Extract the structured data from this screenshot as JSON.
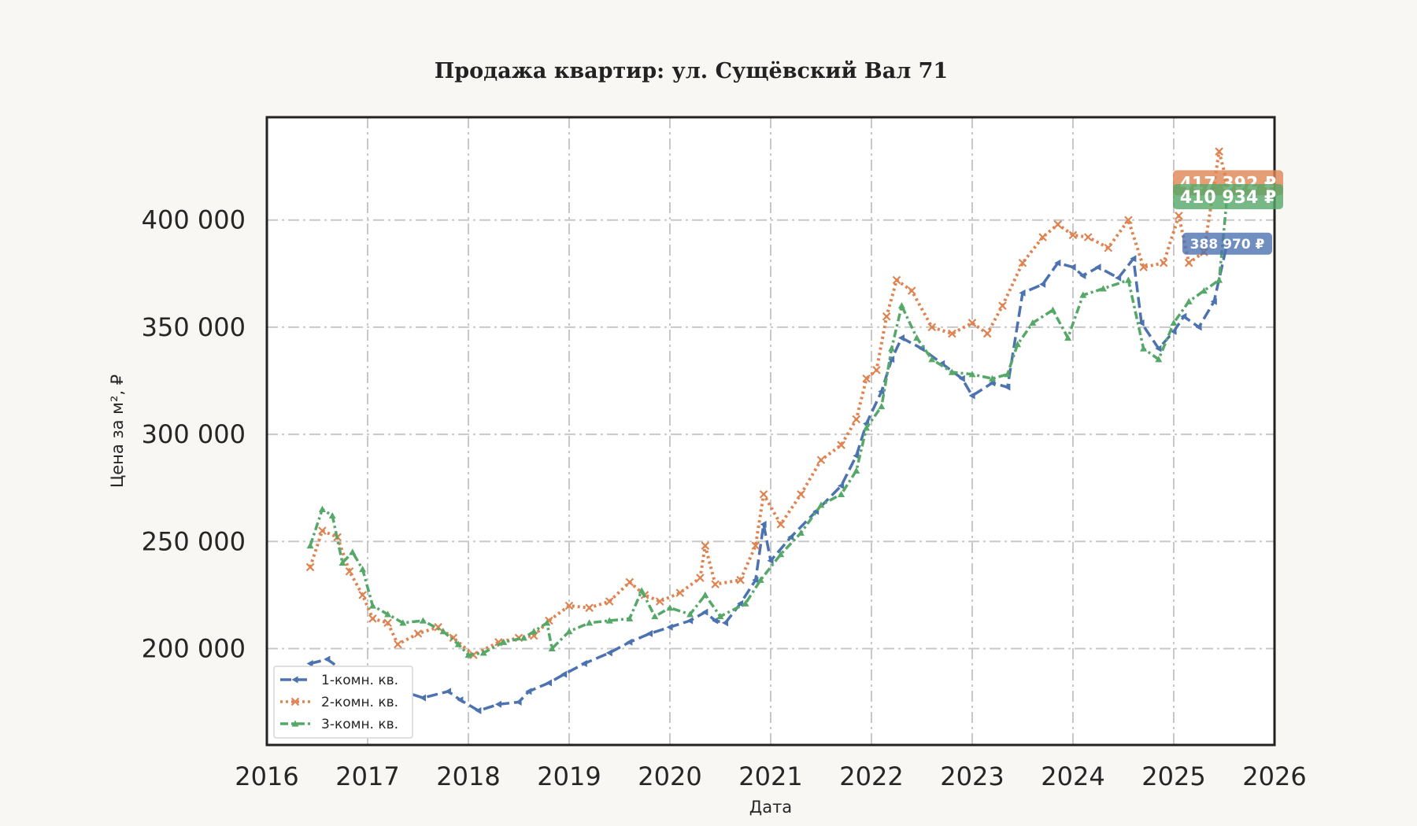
{
  "chart_data": {
    "type": "line",
    "title": "Продажа квартир: ул. Сущёвский Вал 71",
    "xlabel": "Дата",
    "ylabel": "Цена за м², ₽",
    "xlim": [
      2016,
      2026
    ],
    "ylim": [
      155000,
      448000
    ],
    "x_ticks": [
      "2016",
      "2017",
      "2018",
      "2019",
      "2020",
      "2021",
      "2022",
      "2023",
      "2024",
      "2025",
      "2026"
    ],
    "y_ticks": [
      "200 000",
      "250 000",
      "300 000",
      "350 000",
      "400 000"
    ],
    "y_tick_values": [
      200000,
      250000,
      300000,
      350000,
      400000
    ],
    "grid": true,
    "legend_position": "lower-left",
    "series": [
      {
        "name": "1-комн. кв.",
        "color": "#4c72b0",
        "marker": "triangle-left",
        "end_label": "388 970 ₽",
        "points": [
          [
            2016.43,
            193000
          ],
          [
            2016.6,
            195000
          ],
          [
            2016.75,
            190000
          ],
          [
            2016.9,
            186000
          ],
          [
            2017.15,
            183000
          ],
          [
            2017.35,
            180000
          ],
          [
            2017.55,
            177000
          ],
          [
            2017.8,
            180000
          ],
          [
            2017.92,
            176000
          ],
          [
            2018.1,
            171000
          ],
          [
            2018.3,
            174000
          ],
          [
            2018.5,
            175000
          ],
          [
            2018.6,
            180000
          ],
          [
            2018.8,
            184000
          ],
          [
            2018.95,
            188000
          ],
          [
            2019.15,
            193000
          ],
          [
            2019.4,
            198000
          ],
          [
            2019.6,
            203000
          ],
          [
            2019.8,
            207000
          ],
          [
            2020.0,
            210000
          ],
          [
            2020.2,
            213000
          ],
          [
            2020.35,
            217000
          ],
          [
            2020.45,
            213000
          ],
          [
            2020.55,
            212000
          ],
          [
            2020.7,
            221000
          ],
          [
            2020.85,
            232000
          ],
          [
            2020.93,
            258000
          ],
          [
            2021.0,
            241000
          ],
          [
            2021.2,
            252000
          ],
          [
            2021.45,
            264000
          ],
          [
            2021.7,
            276000
          ],
          [
            2021.85,
            290000
          ],
          [
            2021.95,
            305000
          ],
          [
            2022.1,
            320000
          ],
          [
            2022.2,
            335000
          ],
          [
            2022.3,
            345000
          ],
          [
            2022.5,
            340000
          ],
          [
            2022.7,
            333000
          ],
          [
            2022.9,
            326000
          ],
          [
            2023.0,
            318000
          ],
          [
            2023.2,
            324000
          ],
          [
            2023.35,
            322000
          ],
          [
            2023.5,
            366000
          ],
          [
            2023.7,
            370000
          ],
          [
            2023.85,
            380000
          ],
          [
            2024.0,
            378000
          ],
          [
            2024.1,
            374000
          ],
          [
            2024.25,
            378000
          ],
          [
            2024.45,
            373000
          ],
          [
            2024.6,
            382000
          ],
          [
            2024.68,
            352000
          ],
          [
            2024.85,
            340000
          ],
          [
            2025.0,
            348000
          ],
          [
            2025.1,
            355000
          ],
          [
            2025.25,
            350000
          ],
          [
            2025.4,
            362000
          ],
          [
            2025.53,
            388970
          ]
        ]
      },
      {
        "name": "2-комн. кв.",
        "color": "#dd8452",
        "marker": "x",
        "end_label": "417 392 ₽",
        "points": [
          [
            2016.43,
            238000
          ],
          [
            2016.55,
            255000
          ],
          [
            2016.7,
            252000
          ],
          [
            2016.82,
            236000
          ],
          [
            2016.95,
            225000
          ],
          [
            2017.05,
            214000
          ],
          [
            2017.2,
            212000
          ],
          [
            2017.3,
            202000
          ],
          [
            2017.5,
            207000
          ],
          [
            2017.7,
            210000
          ],
          [
            2017.85,
            205000
          ],
          [
            2018.05,
            197000
          ],
          [
            2018.3,
            203000
          ],
          [
            2018.5,
            205000
          ],
          [
            2018.65,
            206000
          ],
          [
            2018.8,
            213000
          ],
          [
            2019.0,
            220000
          ],
          [
            2019.2,
            219000
          ],
          [
            2019.4,
            222000
          ],
          [
            2019.6,
            231000
          ],
          [
            2019.75,
            225000
          ],
          [
            2019.9,
            222000
          ],
          [
            2020.1,
            226000
          ],
          [
            2020.3,
            233000
          ],
          [
            2020.35,
            248000
          ],
          [
            2020.45,
            230000
          ],
          [
            2020.7,
            232000
          ],
          [
            2020.85,
            248000
          ],
          [
            2020.93,
            272000
          ],
          [
            2021.1,
            258000
          ],
          [
            2021.3,
            272000
          ],
          [
            2021.5,
            288000
          ],
          [
            2021.7,
            295000
          ],
          [
            2021.85,
            307000
          ],
          [
            2021.95,
            326000
          ],
          [
            2022.05,
            330000
          ],
          [
            2022.15,
            355000
          ],
          [
            2022.25,
            372000
          ],
          [
            2022.4,
            367000
          ],
          [
            2022.6,
            350000
          ],
          [
            2022.8,
            347000
          ],
          [
            2023.0,
            352000
          ],
          [
            2023.15,
            347000
          ],
          [
            2023.3,
            360000
          ],
          [
            2023.5,
            380000
          ],
          [
            2023.7,
            392000
          ],
          [
            2023.85,
            398000
          ],
          [
            2024.0,
            393000
          ],
          [
            2024.15,
            392000
          ],
          [
            2024.35,
            387000
          ],
          [
            2024.55,
            400000
          ],
          [
            2024.7,
            378000
          ],
          [
            2024.9,
            380000
          ],
          [
            2025.05,
            402000
          ],
          [
            2025.15,
            380000
          ],
          [
            2025.3,
            385000
          ],
          [
            2025.45,
            432000
          ],
          [
            2025.53,
            417392
          ]
        ]
      },
      {
        "name": "3-комн. кв.",
        "color": "#55a868",
        "marker": "triangle-up",
        "end_label": "410 934 ₽",
        "points": [
          [
            2016.43,
            248000
          ],
          [
            2016.55,
            265000
          ],
          [
            2016.65,
            262000
          ],
          [
            2016.75,
            240000
          ],
          [
            2016.85,
            245000
          ],
          [
            2016.95,
            237000
          ],
          [
            2017.05,
            220000
          ],
          [
            2017.2,
            216000
          ],
          [
            2017.35,
            212000
          ],
          [
            2017.55,
            213000
          ],
          [
            2017.75,
            208000
          ],
          [
            2017.9,
            202000
          ],
          [
            2018.0,
            197000
          ],
          [
            2018.15,
            198000
          ],
          [
            2018.35,
            203000
          ],
          [
            2018.55,
            205000
          ],
          [
            2018.65,
            208000
          ],
          [
            2018.78,
            212000
          ],
          [
            2018.83,
            200000
          ],
          [
            2019.0,
            208000
          ],
          [
            2019.2,
            212000
          ],
          [
            2019.4,
            213000
          ],
          [
            2019.6,
            214000
          ],
          [
            2019.72,
            227000
          ],
          [
            2019.85,
            215000
          ],
          [
            2020.0,
            219000
          ],
          [
            2020.2,
            216000
          ],
          [
            2020.35,
            225000
          ],
          [
            2020.5,
            215000
          ],
          [
            2020.75,
            221000
          ],
          [
            2020.9,
            232000
          ],
          [
            2021.1,
            244000
          ],
          [
            2021.3,
            254000
          ],
          [
            2021.5,
            267000
          ],
          [
            2021.7,
            272000
          ],
          [
            2021.85,
            283000
          ],
          [
            2021.95,
            303000
          ],
          [
            2022.1,
            313000
          ],
          [
            2022.2,
            340000
          ],
          [
            2022.3,
            360000
          ],
          [
            2022.45,
            345000
          ],
          [
            2022.6,
            335000
          ],
          [
            2022.8,
            329000
          ],
          [
            2023.0,
            328000
          ],
          [
            2023.2,
            326000
          ],
          [
            2023.35,
            328000
          ],
          [
            2023.45,
            342000
          ],
          [
            2023.6,
            352000
          ],
          [
            2023.8,
            358000
          ],
          [
            2023.95,
            345000
          ],
          [
            2024.1,
            365000
          ],
          [
            2024.3,
            368000
          ],
          [
            2024.55,
            372000
          ],
          [
            2024.7,
            340000
          ],
          [
            2024.85,
            335000
          ],
          [
            2025.0,
            352000
          ],
          [
            2025.15,
            362000
          ],
          [
            2025.3,
            367000
          ],
          [
            2025.45,
            372000
          ],
          [
            2025.53,
            410934
          ]
        ]
      }
    ]
  }
}
